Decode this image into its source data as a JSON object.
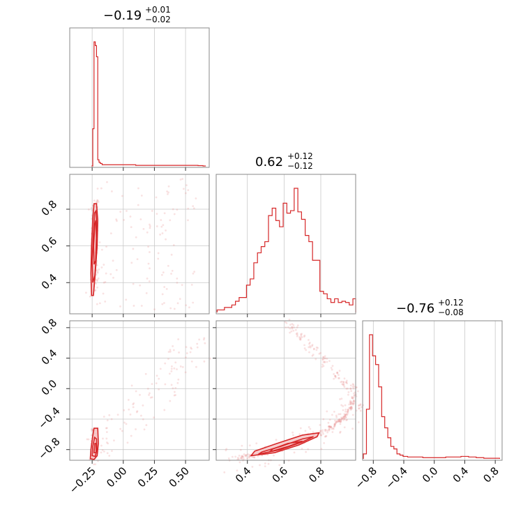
{
  "chart_data": {
    "type": "corner",
    "color": "#d62728",
    "parameters": [
      {
        "index": 0,
        "title_value": "−0.19",
        "title_upper": "+0.01",
        "title_lower": "−0.02",
        "range": [
          -0.43,
          0.69
        ],
        "ticks": [
          -0.25,
          0.0,
          0.25,
          0.5
        ],
        "tick_labels": [
          "−0.25",
          "0.00",
          "0.25",
          "0.50"
        ],
        "hist_bins": [
          {
            "x": -0.255,
            "v": 0.0
          },
          {
            "x": -0.245,
            "v": 0.3
          },
          {
            "x": -0.235,
            "v": 1.0
          },
          {
            "x": -0.225,
            "v": 0.97
          },
          {
            "x": -0.215,
            "v": 0.88
          },
          {
            "x": -0.205,
            "v": 0.05
          },
          {
            "x": -0.195,
            "v": 0.03
          },
          {
            "x": -0.185,
            "v": 0.02
          },
          {
            "x": -0.17,
            "v": 0.01
          },
          {
            "x": -0.1,
            "v": 0.01
          },
          {
            "x": 0.0,
            "v": 0.01
          },
          {
            "x": 0.1,
            "v": 0.005
          },
          {
            "x": 0.2,
            "v": 0.005
          },
          {
            "x": 0.3,
            "v": 0.005
          },
          {
            "x": 0.4,
            "v": 0.005
          },
          {
            "x": 0.5,
            "v": 0.005
          },
          {
            "x": 0.6,
            "v": 0.003
          },
          {
            "x": 0.64,
            "v": 0.0
          }
        ]
      },
      {
        "index": 1,
        "title_value": "0.62",
        "title_upper": "+0.12",
        "title_lower": "−0.12",
        "range": [
          0.23,
          0.99
        ],
        "ticks": [
          0.4,
          0.6,
          0.8
        ],
        "tick_labels": [
          "0.4",
          "0.6",
          "0.8"
        ],
        "hist_bins": [
          {
            "x": 0.235,
            "v": 0.02
          },
          {
            "x": 0.255,
            "v": 0.02
          },
          {
            "x": 0.275,
            "v": 0.04
          },
          {
            "x": 0.295,
            "v": 0.04
          },
          {
            "x": 0.315,
            "v": 0.06
          },
          {
            "x": 0.335,
            "v": 0.09
          },
          {
            "x": 0.355,
            "v": 0.12
          },
          {
            "x": 0.375,
            "v": 0.12
          },
          {
            "x": 0.395,
            "v": 0.22
          },
          {
            "x": 0.415,
            "v": 0.27
          },
          {
            "x": 0.435,
            "v": 0.4
          },
          {
            "x": 0.455,
            "v": 0.48
          },
          {
            "x": 0.475,
            "v": 0.53
          },
          {
            "x": 0.495,
            "v": 0.57
          },
          {
            "x": 0.515,
            "v": 0.78
          },
          {
            "x": 0.535,
            "v": 0.84
          },
          {
            "x": 0.555,
            "v": 0.74
          },
          {
            "x": 0.575,
            "v": 0.69
          },
          {
            "x": 0.595,
            "v": 0.88
          },
          {
            "x": 0.615,
            "v": 0.8
          },
          {
            "x": 0.635,
            "v": 0.82
          },
          {
            "x": 0.655,
            "v": 1.0
          },
          {
            "x": 0.675,
            "v": 0.81
          },
          {
            "x": 0.695,
            "v": 0.75
          },
          {
            "x": 0.715,
            "v": 0.62
          },
          {
            "x": 0.735,
            "v": 0.57
          },
          {
            "x": 0.755,
            "v": 0.42
          },
          {
            "x": 0.775,
            "v": 0.42
          },
          {
            "x": 0.795,
            "v": 0.17
          },
          {
            "x": 0.815,
            "v": 0.15
          },
          {
            "x": 0.835,
            "v": 0.11
          },
          {
            "x": 0.855,
            "v": 0.08
          },
          {
            "x": 0.875,
            "v": 0.11
          },
          {
            "x": 0.895,
            "v": 0.08
          },
          {
            "x": 0.915,
            "v": 0.09
          },
          {
            "x": 0.935,
            "v": 0.08
          },
          {
            "x": 0.955,
            "v": 0.06
          },
          {
            "x": 0.975,
            "v": 0.11
          }
        ]
      },
      {
        "index": 2,
        "title_value": "−0.76",
        "title_upper": "+0.12",
        "title_lower": "−0.08",
        "range": [
          -0.94,
          0.89
        ],
        "ticks": [
          -0.8,
          -0.4,
          0.0,
          0.4,
          0.8
        ],
        "tick_labels": [
          "−0.8",
          "−0.4",
          "0.0",
          "0.4",
          "0.8"
        ],
        "hist_bins": [
          {
            "x": -0.93,
            "v": 0.04
          },
          {
            "x": -0.89,
            "v": 0.4
          },
          {
            "x": -0.85,
            "v": 1.0
          },
          {
            "x": -0.81,
            "v": 0.83
          },
          {
            "x": -0.77,
            "v": 0.76
          },
          {
            "x": -0.73,
            "v": 0.58
          },
          {
            "x": -0.69,
            "v": 0.34
          },
          {
            "x": -0.65,
            "v": 0.25
          },
          {
            "x": -0.61,
            "v": 0.17
          },
          {
            "x": -0.57,
            "v": 0.1
          },
          {
            "x": -0.53,
            "v": 0.08
          },
          {
            "x": -0.49,
            "v": 0.04
          },
          {
            "x": -0.45,
            "v": 0.03
          },
          {
            "x": -0.41,
            "v": 0.02
          },
          {
            "x": -0.35,
            "v": 0.015
          },
          {
            "x": -0.25,
            "v": 0.015
          },
          {
            "x": -0.15,
            "v": 0.01
          },
          {
            "x": -0.05,
            "v": 0.01
          },
          {
            "x": 0.05,
            "v": 0.01
          },
          {
            "x": 0.15,
            "v": 0.015
          },
          {
            "x": 0.25,
            "v": 0.015
          },
          {
            "x": 0.35,
            "v": 0.02
          },
          {
            "x": 0.45,
            "v": 0.015
          },
          {
            "x": 0.55,
            "v": 0.01
          },
          {
            "x": 0.65,
            "v": 0.005
          },
          {
            "x": 0.75,
            "v": 0.005
          },
          {
            "x": 0.82,
            "v": 0.005
          }
        ]
      }
    ],
    "pairs": [
      {
        "x_param": 0,
        "y_param": 1,
        "contours": [
          {
            "level": "outer",
            "points": [
              [
                -0.255,
                0.33
              ],
              [
                -0.26,
                0.45
              ],
              [
                -0.255,
                0.6
              ],
              [
                -0.245,
                0.75
              ],
              [
                -0.235,
                0.83
              ],
              [
                -0.215,
                0.83
              ],
              [
                -0.205,
                0.74
              ],
              [
                -0.21,
                0.6
              ],
              [
                -0.225,
                0.45
              ],
              [
                -0.24,
                0.33
              ]
            ]
          },
          {
            "level": "inner",
            "points": [
              [
                -0.245,
                0.4
              ],
              [
                -0.25,
                0.52
              ],
              [
                -0.24,
                0.66
              ],
              [
                -0.23,
                0.78
              ],
              [
                -0.22,
                0.79
              ],
              [
                -0.212,
                0.7
              ],
              [
                -0.215,
                0.56
              ],
              [
                -0.228,
                0.44
              ]
            ]
          },
          {
            "level": "core",
            "points": [
              [
                -0.235,
                0.5
              ],
              [
                -0.238,
                0.6
              ],
              [
                -0.228,
                0.72
              ],
              [
                -0.22,
                0.74
              ],
              [
                -0.216,
                0.64
              ],
              [
                -0.222,
                0.52
              ]
            ]
          }
        ]
      },
      {
        "x_param": 0,
        "y_param": 2,
        "contours": [
          {
            "level": "outer",
            "points": [
              [
                -0.265,
                -0.92
              ],
              [
                -0.26,
                -0.8
              ],
              [
                -0.245,
                -0.62
              ],
              [
                -0.235,
                -0.52
              ],
              [
                -0.205,
                -0.52
              ],
              [
                -0.2,
                -0.72
              ],
              [
                -0.21,
                -0.88
              ],
              [
                -0.235,
                -0.93
              ]
            ]
          },
          {
            "level": "inner",
            "points": [
              [
                -0.25,
                -0.88
              ],
              [
                -0.245,
                -0.76
              ],
              [
                -0.23,
                -0.64
              ],
              [
                -0.215,
                -0.66
              ],
              [
                -0.212,
                -0.8
              ],
              [
                -0.225,
                -0.89
              ]
            ]
          },
          {
            "level": "core",
            "points": [
              [
                -0.235,
                -0.84
              ],
              [
                -0.228,
                -0.72
              ],
              [
                -0.218,
                -0.72
              ],
              [
                -0.218,
                -0.84
              ]
            ]
          }
        ]
      },
      {
        "x_param": 1,
        "y_param": 2,
        "contours": [
          {
            "level": "outer",
            "points": [
              [
                0.42,
                -0.88
              ],
              [
                0.55,
                -0.84
              ],
              [
                0.68,
                -0.74
              ],
              [
                0.78,
                -0.63
              ],
              [
                0.79,
                -0.58
              ],
              [
                0.7,
                -0.61
              ],
              [
                0.56,
                -0.72
              ],
              [
                0.44,
                -0.82
              ]
            ]
          },
          {
            "level": "inner",
            "points": [
              [
                0.46,
                -0.86
              ],
              [
                0.58,
                -0.8
              ],
              [
                0.7,
                -0.7
              ],
              [
                0.76,
                -0.63
              ],
              [
                0.7,
                -0.66
              ],
              [
                0.58,
                -0.76
              ],
              [
                0.48,
                -0.83
              ]
            ]
          },
          {
            "level": "core",
            "points": [
              [
                0.52,
                -0.83
              ],
              [
                0.62,
                -0.76
              ],
              [
                0.7,
                -0.69
              ],
              [
                0.62,
                -0.72
              ],
              [
                0.54,
                -0.79
              ]
            ]
          }
        ],
        "curve": [
          [
            0.3,
            -0.92
          ],
          [
            0.45,
            -0.87
          ],
          [
            0.6,
            -0.78
          ],
          [
            0.75,
            -0.65
          ],
          [
            0.85,
            -0.52
          ],
          [
            0.92,
            -0.4
          ],
          [
            0.96,
            -0.25
          ],
          [
            0.99,
            -0.08
          ]
        ]
      }
    ]
  }
}
